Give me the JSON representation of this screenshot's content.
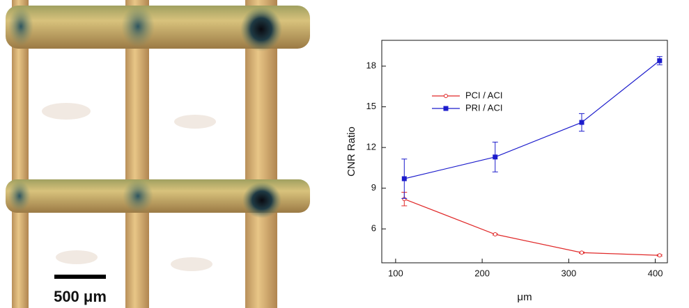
{
  "image": {
    "scale_label": "500 μm"
  },
  "chart_data": {
    "type": "line",
    "x": [
      110,
      215,
      315,
      405
    ],
    "series": [
      {
        "name": "PCI / ACI",
        "color": "#e02828",
        "marker": "open-circle",
        "values": [
          8.2,
          5.6,
          4.25,
          4.05
        ],
        "errors": [
          0.5,
          0.05,
          0.05,
          0.05
        ]
      },
      {
        "name": "PRI / ACI",
        "color": "#1c1ccc",
        "marker": "square",
        "values": [
          9.7,
          11.3,
          13.85,
          18.4
        ],
        "errors": [
          1.45,
          1.1,
          0.65,
          0.3
        ]
      }
    ],
    "xlabel": "μm",
    "ylabel": "CNR Ratio",
    "xlim": [
      84,
      414
    ],
    "ylim": [
      3.5,
      19.9
    ],
    "xticks": [
      100,
      200,
      300,
      400
    ],
    "yticks": [
      6,
      9,
      12,
      15,
      18
    ],
    "legend": "upper left"
  }
}
